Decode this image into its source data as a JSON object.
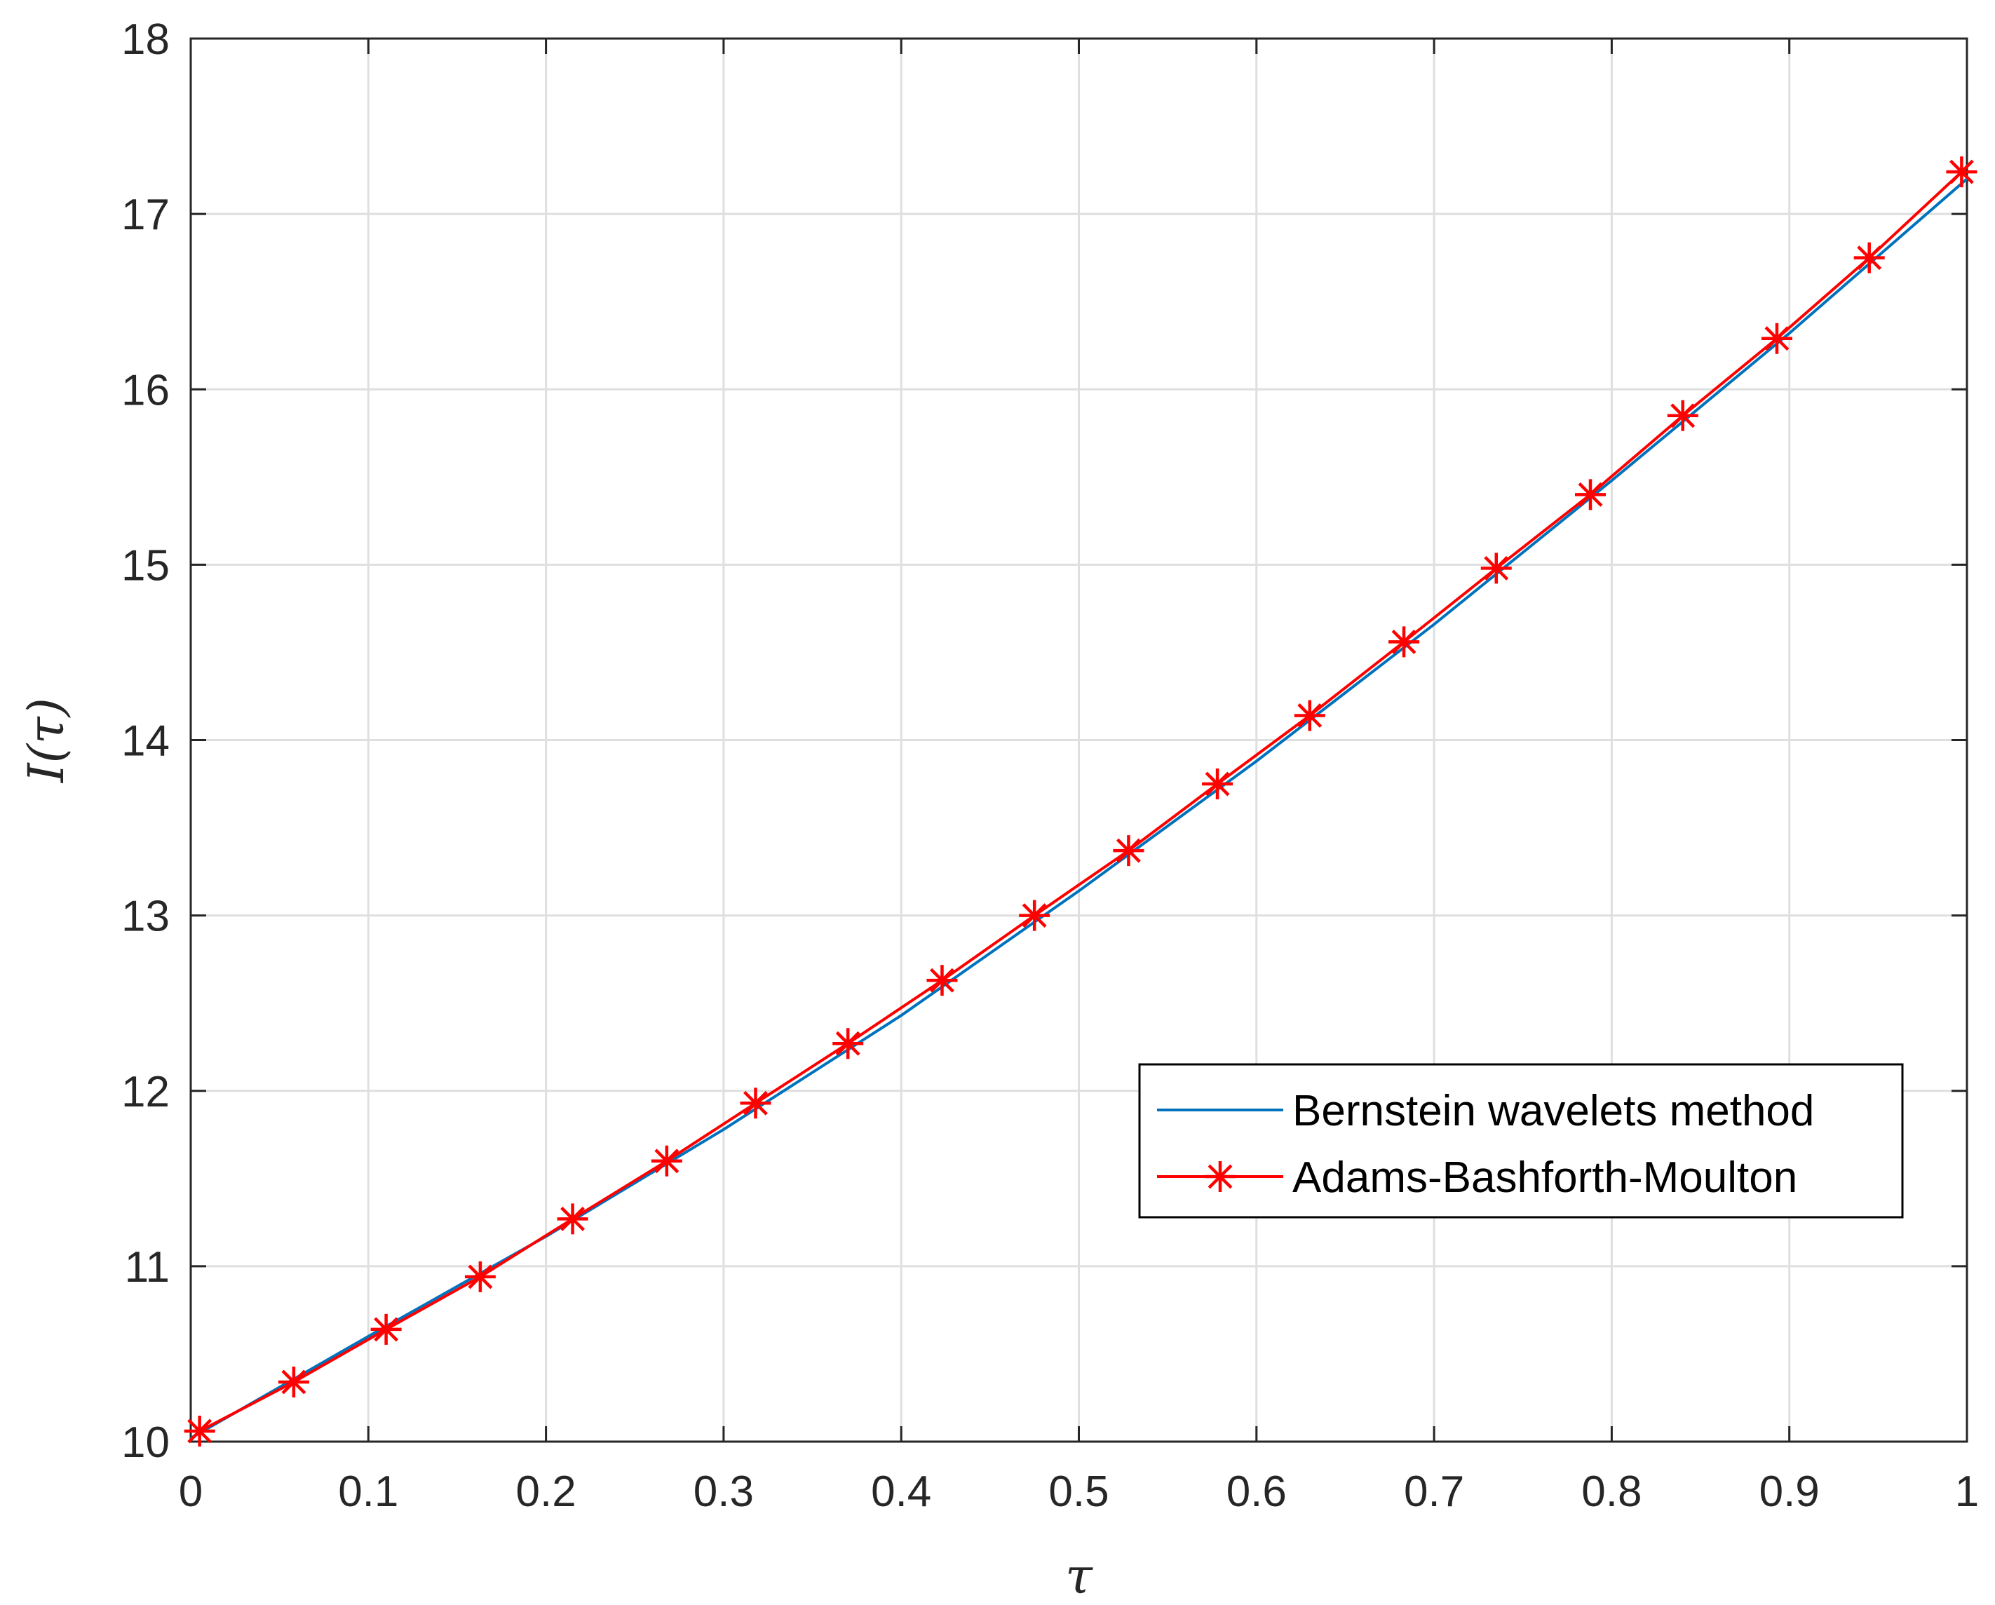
{
  "chart_data": {
    "type": "line",
    "xlabel": "τ",
    "ylabel": "I(τ)",
    "xlim": [
      0,
      1
    ],
    "ylim": [
      10,
      18
    ],
    "xticks": [
      "0",
      "0.1",
      "0.2",
      "0.3",
      "0.4",
      "0.5",
      "0.6",
      "0.7",
      "0.8",
      "0.9",
      "1"
    ],
    "yticks": [
      "10",
      "11",
      "12",
      "13",
      "14",
      "15",
      "16",
      "17",
      "18"
    ],
    "grid": true,
    "legend_position": "lower-right",
    "series": [
      {
        "name": "Bernstein wavelets method",
        "color": "#0072BD",
        "marker": "none",
        "x": [
          0,
          0.1,
          0.2,
          0.3,
          0.4,
          0.5,
          0.6,
          0.7,
          0.8,
          0.9,
          1
        ],
        "y": [
          10.02,
          10.6,
          11.17,
          11.78,
          12.43,
          13.14,
          13.88,
          14.66,
          15.48,
          16.32,
          17.2
        ]
      },
      {
        "name": "Adams-Bashforth-Moulton",
        "color": "#FF0000",
        "marker": "asterisk",
        "x": [
          0.005,
          0.058,
          0.11,
          0.163,
          0.215,
          0.268,
          0.318,
          0.37,
          0.423,
          0.475,
          0.528,
          0.578,
          0.63,
          0.683,
          0.735,
          0.788,
          0.84,
          0.893,
          0.945,
          0.997
        ],
        "y": [
          10.06,
          10.34,
          10.64,
          10.94,
          11.27,
          11.6,
          11.93,
          12.27,
          12.63,
          13.0,
          13.37,
          13.75,
          14.14,
          14.56,
          14.98,
          15.4,
          15.85,
          16.29,
          16.75,
          17.24
        ]
      }
    ]
  }
}
